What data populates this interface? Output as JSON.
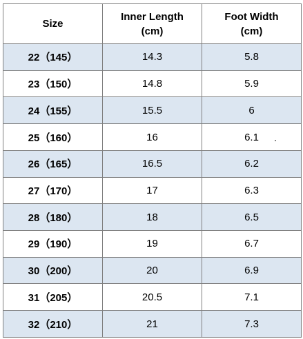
{
  "table": {
    "headers": {
      "size": "Size",
      "inner_length": "Inner Length\n(cm)",
      "inner_length_line1": "Inner Length",
      "inner_length_line2": "(cm)",
      "foot_width_line1": "Foot Width",
      "foot_width_line2": "(cm)"
    },
    "rows": [
      {
        "size": "22（145）",
        "inner_length": "14.3",
        "foot_width": "5.8"
      },
      {
        "size": "23（150）",
        "inner_length": "14.8",
        "foot_width": "5.9"
      },
      {
        "size": "24（155）",
        "inner_length": "15.5",
        "foot_width": "6"
      },
      {
        "size": "25（160）",
        "inner_length": "16",
        "foot_width": "6.1"
      },
      {
        "size": "26（165）",
        "inner_length": "16.5",
        "foot_width": "6.2"
      },
      {
        "size": "27（170）",
        "inner_length": "17",
        "foot_width": "6.3"
      },
      {
        "size": "28（180）",
        "inner_length": "18",
        "foot_width": "6.5"
      },
      {
        "size": "29（190）",
        "inner_length": "19",
        "foot_width": "6.7"
      },
      {
        "size": "30（200）",
        "inner_length": "20",
        "foot_width": "6.9"
      },
      {
        "size": "31（205）",
        "inner_length": "20.5",
        "foot_width": "7.1"
      },
      {
        "size": "32（210）",
        "inner_length": "21",
        "foot_width": "7.3"
      }
    ],
    "colors": {
      "shaded_row": "#dce6f1",
      "border": "#7f7f7f"
    }
  }
}
